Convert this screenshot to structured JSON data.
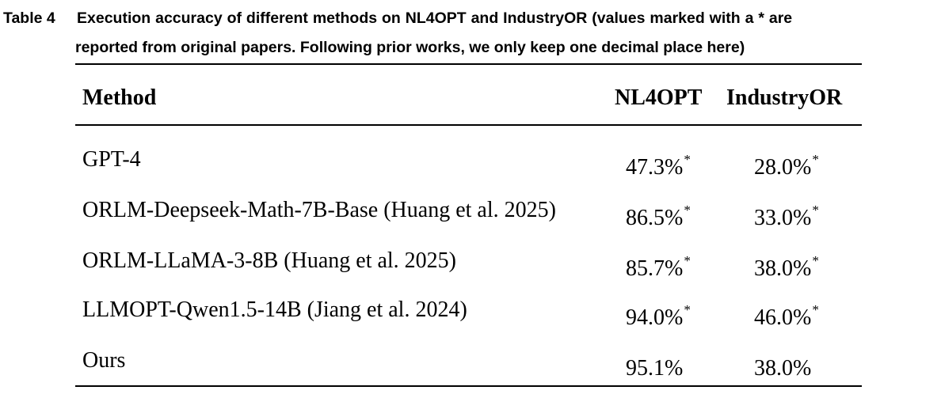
{
  "caption": {
    "label": "Table 4",
    "text_line1": "Execution accuracy of different methods on NL4OPT and IndustryOR (values marked with a * are",
    "text_line2": "reported from original papers. Following prior works, we only keep one decimal place here)"
  },
  "table": {
    "headers": {
      "method": "Method",
      "nl4opt": "NL4OPT",
      "industryor": "IndustryOR"
    },
    "reported_marker": "*",
    "rows": [
      {
        "method": "GPT-4",
        "nl4opt": "47.3%",
        "nl4opt_mark": "*",
        "industryor": "28.0%",
        "industryor_mark": "*"
      },
      {
        "method": "ORLM-Deepseek-Math-7B-Base (Huang et al. 2025)",
        "nl4opt": "86.5%",
        "nl4opt_mark": "*",
        "industryor": "33.0%",
        "industryor_mark": "*"
      },
      {
        "method": "ORLM-LLaMA-3-8B (Huang et al. 2025)",
        "nl4opt": "85.7%",
        "nl4opt_mark": "*",
        "industryor": "38.0%",
        "industryor_mark": "*"
      },
      {
        "method": "LLMOPT-Qwen1.5-14B (Jiang et al. 2024)",
        "nl4opt": "94.0%",
        "nl4opt_mark": "*",
        "industryor": "46.0%",
        "industryor_mark": "*"
      },
      {
        "method": "Ours",
        "nl4opt": "95.1%",
        "nl4opt_mark": "",
        "industryor": "38.0%",
        "industryor_mark": ""
      }
    ]
  }
}
